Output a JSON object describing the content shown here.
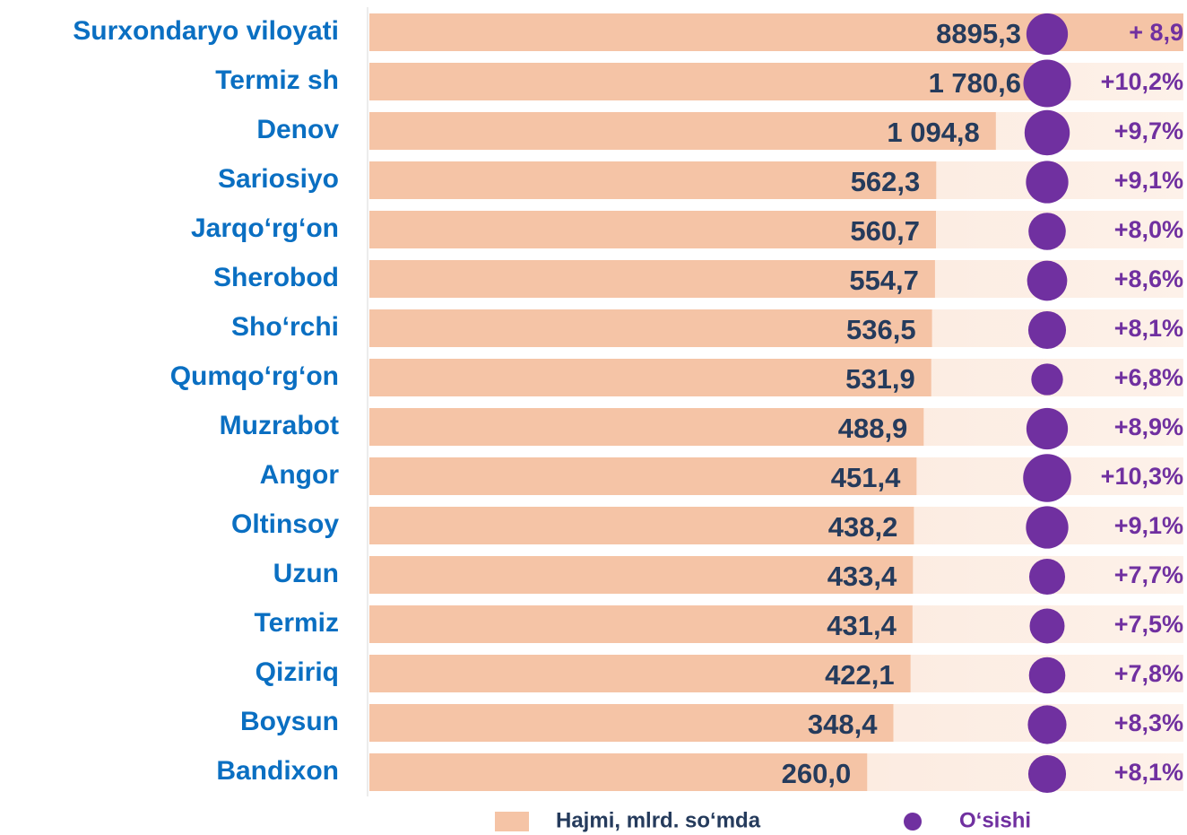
{
  "chart_data": {
    "type": "bar",
    "categories": [
      "Surxondaryo viloyati",
      "Termiz sh",
      "Denov",
      "Sariosiyo",
      "Jarqo‘rg‘on",
      "Sherobod",
      "Sho‘rchi",
      "Qumqo‘rg‘on",
      "Muzrabot",
      "Angor",
      "Oltinsoy",
      "Uzun",
      "Termiz ",
      "Qiziriq",
      "Boysun",
      "Bandixon"
    ],
    "series": [
      {
        "name": "Hajmi, mlrd. so‘mda",
        "color": "#f5c4a6",
        "values": [
          8895.3,
          1780.6,
          1094.8,
          562.3,
          560.7,
          554.7,
          536.5,
          531.9,
          488.9,
          451.4,
          438.2,
          433.4,
          431.4,
          422.1,
          348.4,
          260.0
        ],
        "value_labels": [
          "8895,3",
          "1 780,6",
          "1 094,8",
          "562,3",
          "560,7",
          "554,7",
          "536,5",
          "531,9",
          "488,9",
          "451,4",
          "438,2",
          "433,4",
          "431,4",
          "422,1",
          "348,4",
          "260,0"
        ]
      },
      {
        "name": "O‘sishi",
        "color": "#7030a0",
        "values": [
          8.9,
          10.2,
          9.7,
          9.1,
          8.0,
          8.6,
          8.1,
          6.8,
          8.9,
          10.3,
          9.1,
          7.7,
          7.5,
          7.8,
          8.3,
          8.1
        ],
        "value_labels": [
          "+ 8,9",
          "+10,2%",
          "+9,7%",
          "+9,1%",
          "+8,0%",
          "+8,6%",
          "+8,1%",
          "+6,8%",
          "+8,9%",
          "+10,3%",
          "+9,1%",
          "+7,7%",
          "+7,5%",
          "+7,8%",
          "+8,3%",
          "+8,1%"
        ]
      }
    ]
  }
}
